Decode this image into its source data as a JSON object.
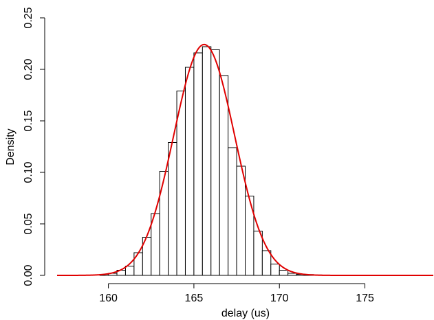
{
  "chart_data": {
    "type": "bar",
    "title": "",
    "xlabel": "delay (us)",
    "ylabel": "Density",
    "xlim": [
      157,
      179
    ],
    "ylim": [
      0,
      0.25
    ],
    "x_ticks": [
      160,
      165,
      170,
      175
    ],
    "y_ticks": [
      0.0,
      0.05,
      0.1,
      0.15,
      0.2,
      0.25
    ],
    "x_tick_labels": [
      "160",
      "165",
      "170",
      "175"
    ],
    "y_tick_labels": [
      "0.00",
      "0.05",
      "0.10",
      "0.15",
      "0.20",
      "0.25"
    ],
    "bin_width": 0.5,
    "bins": [
      {
        "x0": 159.5,
        "density": 0.001
      },
      {
        "x0": 160.0,
        "density": 0.002
      },
      {
        "x0": 160.5,
        "density": 0.005
      },
      {
        "x0": 161.0,
        "density": 0.009
      },
      {
        "x0": 161.5,
        "density": 0.022
      },
      {
        "x0": 162.0,
        "density": 0.037
      },
      {
        "x0": 162.5,
        "density": 0.06
      },
      {
        "x0": 163.0,
        "density": 0.101
      },
      {
        "x0": 163.5,
        "density": 0.129
      },
      {
        "x0": 164.0,
        "density": 0.179
      },
      {
        "x0": 164.5,
        "density": 0.202
      },
      {
        "x0": 165.0,
        "density": 0.216
      },
      {
        "x0": 165.5,
        "density": 0.222
      },
      {
        "x0": 166.0,
        "density": 0.219
      },
      {
        "x0": 166.5,
        "density": 0.194
      },
      {
        "x0": 167.0,
        "density": 0.124
      },
      {
        "x0": 167.5,
        "density": 0.106
      },
      {
        "x0": 168.0,
        "density": 0.077
      },
      {
        "x0": 168.5,
        "density": 0.043
      },
      {
        "x0": 169.0,
        "density": 0.024
      },
      {
        "x0": 169.5,
        "density": 0.011
      },
      {
        "x0": 170.0,
        "density": 0.005
      },
      {
        "x0": 170.5,
        "density": 0.002
      },
      {
        "x0": 171.0,
        "density": 0.001
      },
      {
        "x0": 171.5,
        "density": 0.0008
      },
      {
        "x0": 172.0,
        "density": 0.0004
      },
      {
        "x0": 172.5,
        "density": 0.0003
      }
    ],
    "curve": {
      "type": "normal",
      "mean": 165.6,
      "sd": 1.78,
      "color": "#e00000",
      "x_range": [
        157,
        179
      ]
    },
    "grid": false,
    "legend": "none"
  }
}
